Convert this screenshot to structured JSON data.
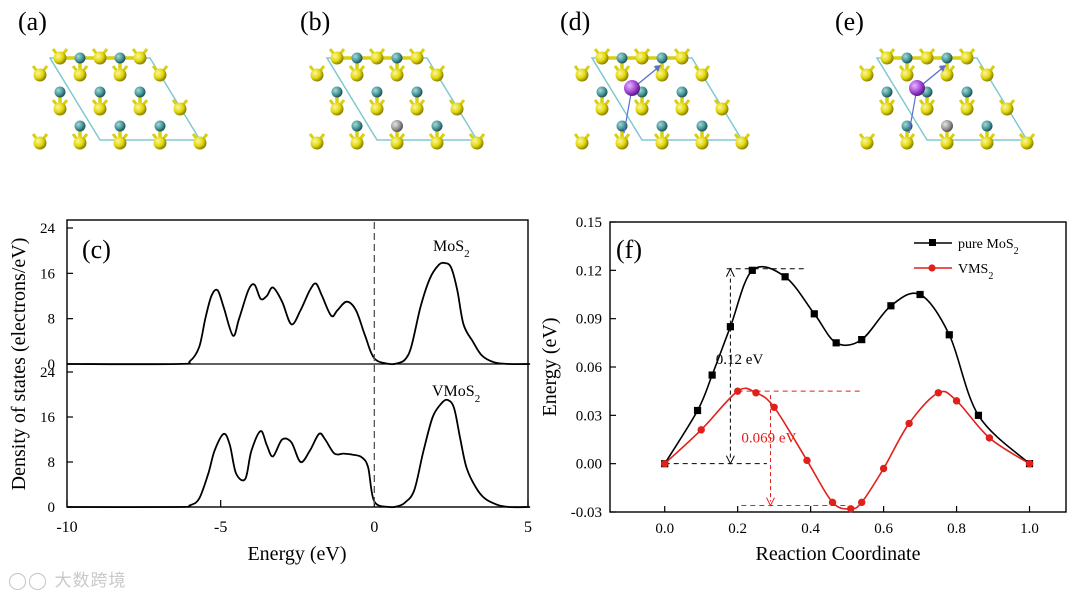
{
  "panels": {
    "a": "(a)",
    "b": "(b)",
    "c": "(c)",
    "d": "(d)",
    "e": "(e)",
    "f": "(f)"
  },
  "colors": {
    "sulfur": "#e6dc0a",
    "molybdenum": "#4a9a9c",
    "vanadium": "#9a9a9a",
    "lithium": "#a64ad8",
    "cell": "#7fc8d0",
    "pure": "#000000",
    "doped": "#e0201b"
  },
  "watermark": "大数跨境",
  "chart_data": [
    {
      "type": "line",
      "title": "",
      "xlabel": "Energy (eV)",
      "ylabel": "Density of states (electrons/eV)",
      "xlim": [
        -10,
        5
      ],
      "xticks": [
        "-10",
        "-5",
        "0",
        "5"
      ],
      "fermi_level": 0,
      "subplots": [
        {
          "label": "MoS₂",
          "label_base": "MoS",
          "label_sub": "2",
          "ylim": [
            0,
            24
          ],
          "yticks": [
            "0",
            "8",
            "16",
            "24"
          ],
          "x": [
            -6.4,
            -6.0,
            -5.7,
            -5.5,
            -5.3,
            -5.1,
            -4.9,
            -4.6,
            -4.4,
            -4.1,
            -3.9,
            -3.7,
            -3.5,
            -3.3,
            -3.0,
            -2.7,
            -2.4,
            -2.1,
            -1.9,
            -1.7,
            -1.4,
            -1.2,
            -0.9,
            -0.6,
            -0.3,
            0.0,
            0.5,
            0.8,
            1.0,
            1.2,
            1.5,
            1.8,
            2.1,
            2.3,
            2.5,
            2.7,
            2.9,
            3.2,
            3.5,
            3.9,
            4.4,
            5.0
          ],
          "y": [
            0,
            0.5,
            3,
            8,
            12,
            13,
            10,
            5,
            8,
            13,
            14,
            11.5,
            12,
            13.5,
            11,
            7,
            9.5,
            13,
            14.2,
            12,
            8.5,
            9.5,
            11,
            9.5,
            5,
            1,
            0,
            0.2,
            0.8,
            3,
            10,
            15,
            17.5,
            17.8,
            17,
            13,
            7,
            4,
            1.5,
            0.3,
            0,
            0
          ]
        },
        {
          "label": "VMoS₂",
          "label_base": "VMoS",
          "label_sub": "2",
          "ylim": [
            0,
            24
          ],
          "yticks": [
            "0",
            "8",
            "16",
            "24"
          ],
          "x": [
            -6.4,
            -6.0,
            -5.7,
            -5.4,
            -5.2,
            -4.9,
            -4.7,
            -4.5,
            -4.2,
            -4.0,
            -3.7,
            -3.5,
            -3.3,
            -3.0,
            -2.7,
            -2.4,
            -2.1,
            -1.8,
            -1.6,
            -1.3,
            -1.0,
            -0.7,
            -0.4,
            -0.2,
            0.0,
            0.5,
            0.8,
            1.0,
            1.3,
            1.6,
            1.9,
            2.2,
            2.4,
            2.6,
            2.8,
            3.0,
            3.3,
            3.6,
            4.0,
            4.4,
            5.0
          ],
          "y": [
            0,
            0.3,
            1.5,
            6,
            10,
            13,
            11,
            6,
            5,
            10,
            13.5,
            11,
            9,
            12,
            11.5,
            8,
            10,
            13,
            12,
            9.5,
            9.5,
            9.3,
            8.8,
            7,
            1,
            0,
            0.2,
            0.8,
            3,
            10,
            16,
            18.5,
            19,
            17.5,
            12,
            7,
            3.5,
            1.5,
            0.4,
            0,
            0
          ]
        }
      ]
    },
    {
      "type": "line",
      "title": "",
      "xlabel": "Reaction Coordinate",
      "ylabel": "Energy (eV)",
      "xlim": [
        -0.15,
        1.1
      ],
      "ylim": [
        -0.03,
        0.15
      ],
      "xticks": [
        "0.0",
        "0.2",
        "0.4",
        "0.6",
        "0.8",
        "1.0"
      ],
      "yticks": [
        "-0.03",
        "0.00",
        "0.03",
        "0.06",
        "0.09",
        "0.12",
        "0.15"
      ],
      "series": [
        {
          "name": "pure MoS₂",
          "name_base": "pure MoS",
          "name_sub": "2",
          "marker": "square",
          "x": [
            0.0,
            0.09,
            0.13,
            0.18,
            0.24,
            0.33,
            0.41,
            0.47,
            0.54,
            0.62,
            0.7,
            0.78,
            0.86,
            1.0
          ],
          "y": [
            0.0,
            0.033,
            0.055,
            0.085,
            0.12,
            0.116,
            0.093,
            0.075,
            0.077,
            0.098,
            0.105,
            0.08,
            0.03,
            0.0
          ]
        },
        {
          "name": "VMS₂",
          "name_base": "VMS",
          "name_sub": "2",
          "marker": "circle",
          "x": [
            0.0,
            0.1,
            0.2,
            0.25,
            0.3,
            0.39,
            0.46,
            0.51,
            0.54,
            0.6,
            0.67,
            0.75,
            0.8,
            0.89,
            1.0
          ],
          "y": [
            0.0,
            0.021,
            0.045,
            0.044,
            0.035,
            0.002,
            -0.024,
            -0.028,
            -0.024,
            -0.003,
            0.025,
            0.044,
            0.039,
            0.016,
            0.0
          ]
        }
      ],
      "annotations": [
        {
          "text": "0.12 eV",
          "color": "#000000",
          "x": 0.18,
          "y_from": 0.0,
          "y_to": 0.121
        },
        {
          "text": "0.069 eV",
          "color": "#e0201b",
          "x": 0.29,
          "y_from": -0.026,
          "y_to": 0.045
        }
      ],
      "legend_position": "top-right"
    }
  ]
}
